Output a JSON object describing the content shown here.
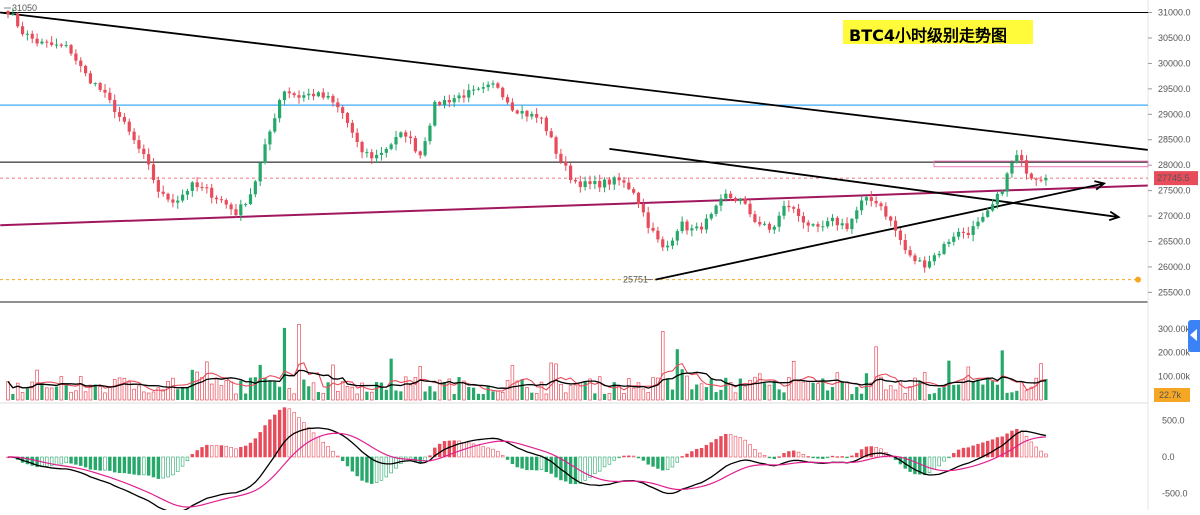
{
  "title": "BTC4小时级别走势图",
  "colors": {
    "up": "#26a86a",
    "down": "#e84b5a",
    "blue_line": "#3fa9f5",
    "magenta_line": "#a0175d",
    "pink_ma": "#e0208f",
    "black": "#000000",
    "orange_dotted": "#f5a623",
    "current_price_tag": "#e84b5a",
    "volume_tag": "#f5a623"
  },
  "chart_data": [
    {
      "type": "candlestick",
      "panel": "price",
      "y_ticks": [
        "31000.0",
        "30500.0",
        "30000.0",
        "29500.0",
        "29000.0",
        "28500.0",
        "28000.0",
        "27500.0",
        "27000.0",
        "26500.0",
        "26000.0",
        "25500.0"
      ],
      "ylim": [
        25350,
        31050
      ],
      "high_label": "31050",
      "low_label": "25751",
      "current_price": 27745.5,
      "current_price_label": "27745.5",
      "levels": [
        {
          "name": "top-black-level",
          "value": 31000,
          "color": "black"
        },
        {
          "name": "blue-resistance",
          "value": 29180,
          "color": "blue_line"
        },
        {
          "name": "black-level-28060",
          "value": 28060,
          "color": "black"
        },
        {
          "name": "low-dotted-level",
          "value": 25751,
          "color": "orange_dotted"
        }
      ],
      "anchors": [
        31050,
        30600,
        30400,
        30350,
        30300,
        29800,
        29500,
        29100,
        28600,
        28100,
        27400,
        27300,
        27600,
        27500,
        27300,
        27050,
        27500,
        28500,
        29500,
        29350,
        29400,
        29300,
        29000,
        28300,
        28150,
        28400,
        28650,
        28200,
        29200,
        29300,
        29400,
        29450,
        29600,
        29150,
        29000,
        28900,
        28200,
        27700,
        27600,
        27650,
        27700,
        27500,
        26800,
        26300,
        26850,
        26700,
        26950,
        27400,
        27300,
        26900,
        26700,
        27250,
        26950,
        26700,
        26900,
        26800,
        27300,
        27300,
        26800,
        26200,
        26050,
        26300,
        26650,
        26700,
        26950,
        27450,
        28200,
        27800,
        27750
      ]
    },
    {
      "type": "bar",
      "panel": "volume",
      "y_ticks": [
        "300.00k",
        "200.00k",
        "100.00k"
      ],
      "ylim": [
        0,
        330
      ],
      "current_volume_label": "22.7k",
      "volume_peaks": [
        {
          "index": 18,
          "value": 305
        },
        {
          "index": 19,
          "value": 320
        },
        {
          "index": 25,
          "value": 175
        },
        {
          "index": 43,
          "value": 290
        },
        {
          "index": 44,
          "value": 215
        },
        {
          "index": 57,
          "value": 225
        },
        {
          "index": 65,
          "value": 210
        }
      ]
    },
    {
      "type": "macd",
      "panel": "macd",
      "y_ticks": [
        "500.0",
        "0.0",
        "-500.0"
      ],
      "ylim": [
        -620,
        620
      ]
    }
  ]
}
